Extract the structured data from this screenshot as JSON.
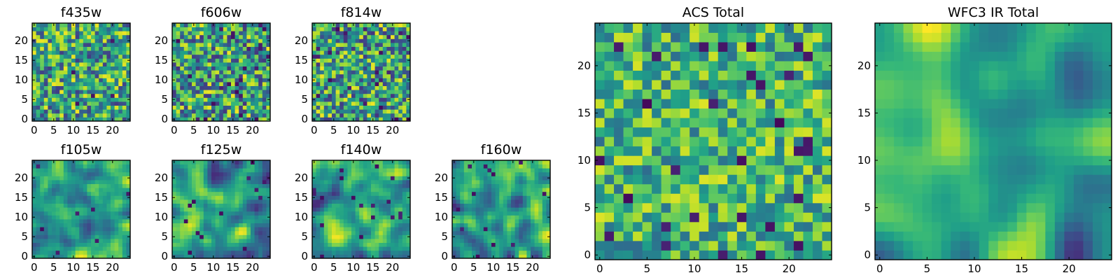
{
  "chart_data": {
    "type": "heatmap",
    "colormap": "viridis",
    "colormap_stops": [
      "#440154",
      "#482878",
      "#3e4a89",
      "#31688e",
      "#26828e",
      "#1f9e89",
      "#35b779",
      "#6ece58",
      "#b5de2b",
      "#fde725"
    ],
    "grid_size": [
      25,
      25
    ],
    "panels": [
      {
        "id": "f435w",
        "title": "f435w",
        "xticks": [
          "0",
          "5",
          "10",
          "15",
          "20"
        ],
        "yticks": [
          "0",
          "5",
          "10",
          "15",
          "20"
        ],
        "seed": 11,
        "style": "noise",
        "smoothing": 0,
        "lo": 0.18,
        "hi": 0.98,
        "dark_frac": 0.015
      },
      {
        "id": "f606w",
        "title": "f606w",
        "xticks": [
          "0",
          "5",
          "10",
          "15",
          "20"
        ],
        "yticks": [
          "0",
          "5",
          "10",
          "15",
          "20"
        ],
        "seed": 23,
        "style": "noise",
        "smoothing": 0,
        "lo": 0.15,
        "hi": 0.98,
        "dark_frac": 0.035
      },
      {
        "id": "f814w",
        "title": "f814w",
        "xticks": [
          "0",
          "5",
          "10",
          "15",
          "20"
        ],
        "yticks": [
          "0",
          "5",
          "10",
          "15",
          "20"
        ],
        "seed": 37,
        "style": "noise",
        "smoothing": 0,
        "lo": 0.15,
        "hi": 0.98,
        "dark_frac": 0.03
      },
      {
        "id": "f105w",
        "title": "f105w",
        "xticks": [
          "0",
          "5",
          "10",
          "15",
          "20"
        ],
        "yticks": [
          "0",
          "5",
          "10",
          "15",
          "20"
        ],
        "seed": 41,
        "style": "smooth",
        "smoothing": 2,
        "lo": 0.22,
        "hi": 0.98,
        "dark_frac": 0.015
      },
      {
        "id": "f125w",
        "title": "f125w",
        "xticks": [
          "0",
          "5",
          "10",
          "15",
          "20"
        ],
        "yticks": [
          "0",
          "5",
          "10",
          "15",
          "20"
        ],
        "seed": 53,
        "style": "smooth",
        "smoothing": 2,
        "lo": 0.1,
        "hi": 0.98,
        "dark_frac": 0.025
      },
      {
        "id": "f140w",
        "title": "f140w",
        "xticks": [
          "0",
          "5",
          "10",
          "15",
          "20"
        ],
        "yticks": [
          "0",
          "5",
          "10",
          "15",
          "20"
        ],
        "seed": 67,
        "style": "smooth",
        "smoothing": 2,
        "lo": 0.12,
        "hi": 0.98,
        "dark_frac": 0.025
      },
      {
        "id": "f160w",
        "title": "f160w",
        "xticks": [
          "0",
          "5",
          "10",
          "15",
          "20"
        ],
        "yticks": [
          "0",
          "5",
          "10",
          "15",
          "20"
        ],
        "seed": 79,
        "style": "smooth",
        "smoothing": 2,
        "lo": 0.12,
        "hi": 0.98,
        "dark_frac": 0.02
      },
      {
        "id": "acs_total",
        "title": "ACS Total",
        "xticks": [
          "0",
          "5",
          "10",
          "15",
          "20"
        ],
        "yticks": [
          "0",
          "5",
          "10",
          "15",
          "20"
        ],
        "seed": 97,
        "style": "noise",
        "smoothing": 0,
        "lo": 0.35,
        "hi": 0.95,
        "dark_frac": 0.035
      },
      {
        "id": "wfc3_ir_total",
        "title": "WFC3 IR Total",
        "xticks": [
          "0",
          "5",
          "10",
          "15",
          "20"
        ],
        "yticks": [
          "0",
          "5",
          "10",
          "15",
          "20"
        ],
        "seed": 131,
        "style": "smooth",
        "smoothing": 4,
        "lo": 0.15,
        "hi": 1.0,
        "dark_frac": 0.0
      }
    ]
  }
}
